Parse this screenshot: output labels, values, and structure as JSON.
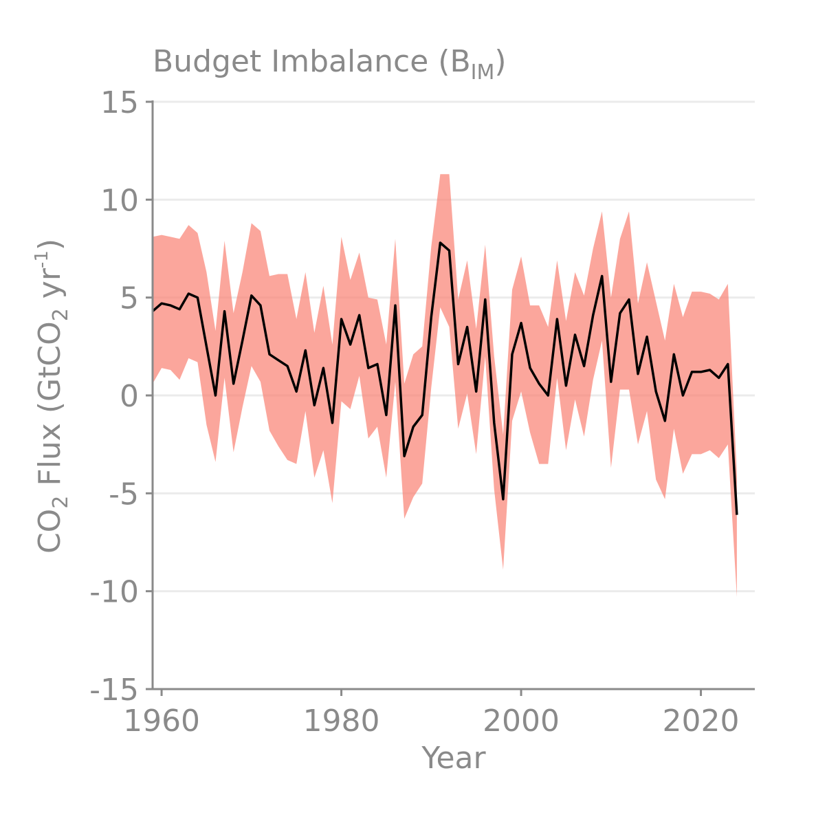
{
  "chart_data": {
    "type": "line",
    "title": {
      "main": "Budget Imbalance (B",
      "sub": "IM",
      "close": ")"
    },
    "xlabel": "Year",
    "ylabel": {
      "p1": "CO",
      "s1": "2",
      "p2": " Flux (GtCO",
      "s2": "2",
      "p3": " yr",
      "sup": "-1",
      "p4": ")"
    },
    "xlim": [
      1959,
      2026
    ],
    "ylim": [
      -15,
      15
    ],
    "xticks": [
      1960,
      1980,
      2000,
      2020
    ],
    "yticks": [
      15,
      10,
      5,
      0,
      -5,
      -10,
      -15
    ],
    "ytick_labels": [
      "15",
      "10",
      "5",
      "0",
      "-5",
      "-10",
      "-15"
    ],
    "grid": true,
    "colors": {
      "band": "#fa8072",
      "line": "#000000",
      "text": "#8a8a8a",
      "axis": "#8a8a8a",
      "grid": "#ebebeb"
    },
    "years": [
      1959,
      1960,
      1961,
      1962,
      1963,
      1964,
      1965,
      1966,
      1967,
      1968,
      1969,
      1970,
      1971,
      1972,
      1973,
      1974,
      1975,
      1976,
      1977,
      1978,
      1979,
      1980,
      1981,
      1982,
      1983,
      1984,
      1985,
      1986,
      1987,
      1988,
      1989,
      1990,
      1991,
      1992,
      1993,
      1994,
      1995,
      1996,
      1997,
      1998,
      1999,
      2000,
      2001,
      2002,
      2003,
      2004,
      2005,
      2006,
      2007,
      2008,
      2009,
      2010,
      2011,
      2012,
      2013,
      2014,
      2015,
      2016,
      2017,
      2018,
      2019,
      2020,
      2021,
      2022,
      2023,
      2024
    ],
    "imbalance": [
      4.3,
      4.7,
      4.6,
      4.4,
      5.2,
      5.0,
      2.5,
      0.0,
      4.3,
      0.6,
      2.8,
      5.1,
      4.6,
      2.1,
      1.8,
      1.5,
      0.2,
      2.3,
      -0.5,
      1.4,
      -1.4,
      3.9,
      2.6,
      4.1,
      1.4,
      1.6,
      -1.0,
      4.6,
      -3.1,
      -1.6,
      -1.0,
      4.0,
      7.8,
      7.4,
      1.6,
      3.5,
      0.2,
      4.9,
      -1.4,
      -5.3,
      2.1,
      3.7,
      1.4,
      0.6,
      0.0,
      3.9,
      0.5,
      3.1,
      1.5,
      4.1,
      6.1,
      0.7,
      4.2,
      4.9,
      1.1,
      3.0,
      0.2,
      -1.3,
      2.1,
      0.0,
      1.2,
      1.2,
      1.3,
      0.9,
      1.6,
      -6.1
    ],
    "upper": [
      8.1,
      8.2,
      8.1,
      8.0,
      8.7,
      8.3,
      6.3,
      3.3,
      7.9,
      4.2,
      6.3,
      8.8,
      8.4,
      6.1,
      6.2,
      6.2,
      3.9,
      6.3,
      3.2,
      5.6,
      2.6,
      8.1,
      5.9,
      7.3,
      5.0,
      4.9,
      2.6,
      8.0,
      0.6,
      2.1,
      2.5,
      7.6,
      11.3,
      11.3,
      4.9,
      6.9,
      3.4,
      7.7,
      2.0,
      -2.0,
      5.4,
      7.1,
      4.6,
      4.6,
      3.5,
      6.9,
      3.8,
      6.3,
      5.1,
      7.5,
      9.4,
      5.0,
      8.0,
      9.4,
      4.7,
      6.8,
      4.8,
      2.8,
      5.7,
      4.0,
      5.3,
      5.3,
      5.2,
      4.9,
      5.7,
      -4.0
    ],
    "lower": [
      0.6,
      1.4,
      1.3,
      0.8,
      1.9,
      1.7,
      -1.5,
      -3.4,
      0.9,
      -2.9,
      -0.6,
      1.5,
      0.7,
      -1.8,
      -2.6,
      -3.3,
      -3.5,
      -0.8,
      -4.2,
      -2.8,
      -5.5,
      -0.3,
      -0.7,
      1.0,
      -2.2,
      -1.6,
      -4.2,
      0.7,
      -6.3,
      -5.2,
      -4.5,
      0.4,
      4.5,
      3.5,
      -1.7,
      0.1,
      -3.0,
      2.0,
      -4.8,
      -8.9,
      -1.3,
      0.2,
      -1.9,
      -3.5,
      -3.5,
      0.9,
      -2.8,
      -0.2,
      -2.1,
      0.8,
      2.8,
      -3.7,
      0.3,
      0.3,
      -2.5,
      -0.8,
      -4.3,
      -5.3,
      -1.7,
      -4.0,
      -3.0,
      -3.0,
      -2.8,
      -3.2,
      -2.5,
      -10.3
    ]
  }
}
